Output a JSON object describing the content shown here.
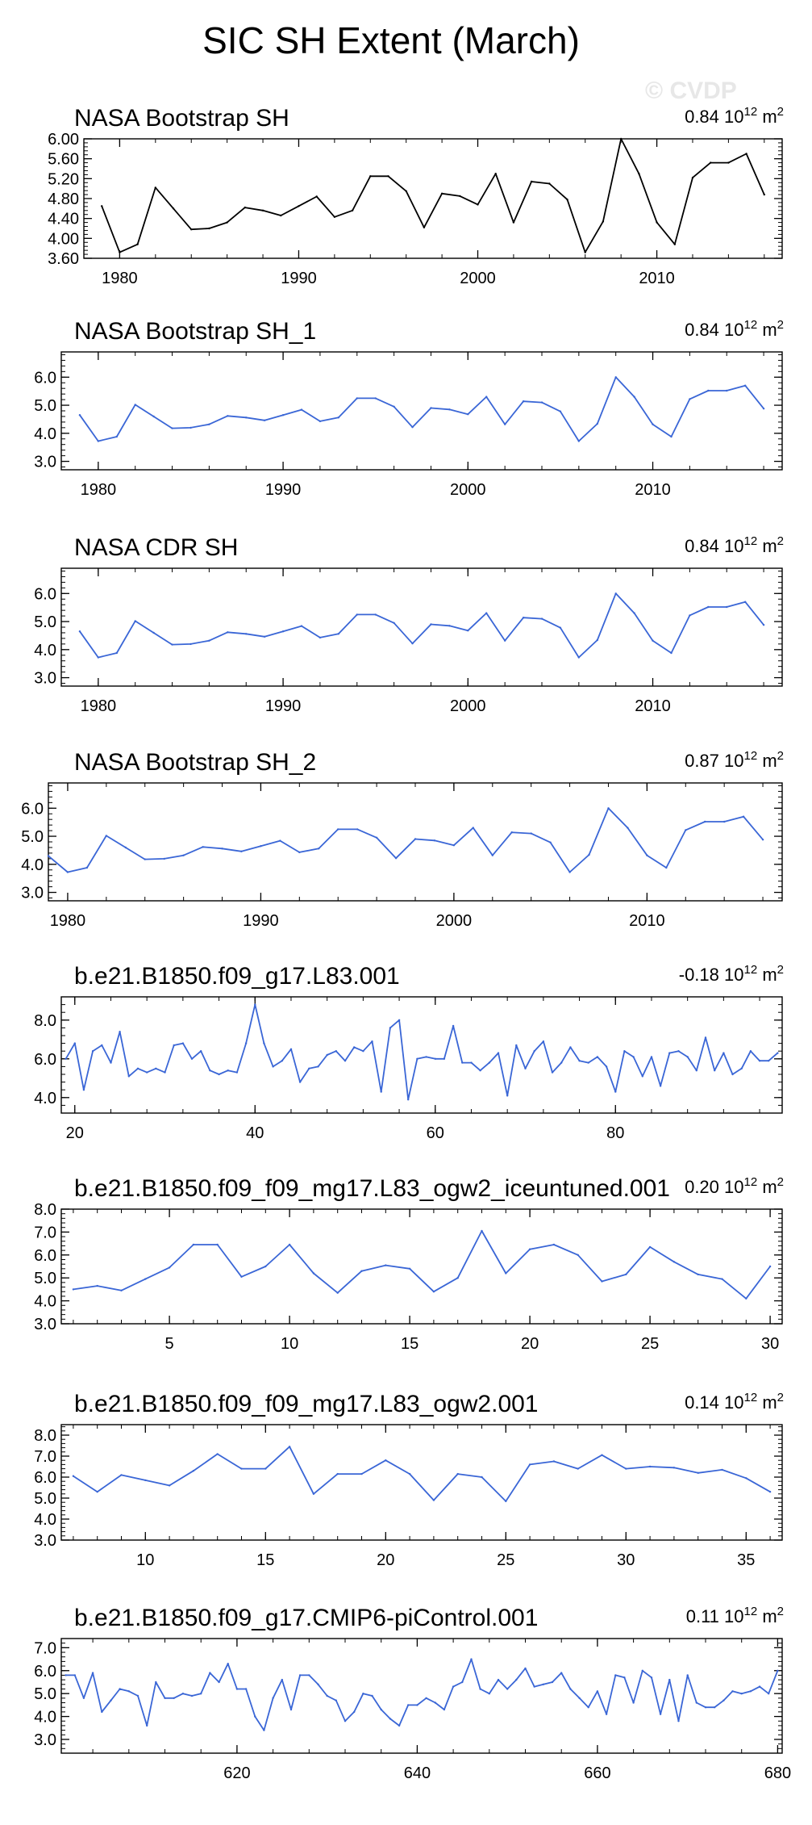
{
  "page_title": "SIC SH Extent (March)",
  "watermark": "© CVDP",
  "colors": {
    "obs": "#000000",
    "model": "#3a66d6"
  },
  "chart_data": [
    {
      "type": "line",
      "title": "NASA Bootstrap SH",
      "stat_value": "0.84",
      "stat_unit_base": "10",
      "stat_unit_exp": "12",
      "stat_unit_tail": "m",
      "stat_unit_sup": "2",
      "color": "#000000",
      "x": [
        1979,
        1980,
        1981,
        1982,
        1983,
        1984,
        1985,
        1986,
        1987,
        1988,
        1989,
        1990,
        1991,
        1992,
        1993,
        1994,
        1995,
        1996,
        1997,
        1998,
        1999,
        2000,
        2001,
        2002,
        2003,
        2004,
        2005,
        2006,
        2007,
        2008,
        2009,
        2010,
        2011,
        2012,
        2013,
        2014,
        2015,
        2016
      ],
      "values": [
        4.65,
        3.72,
        3.88,
        5.02,
        4.6,
        4.18,
        4.2,
        4.32,
        4.62,
        4.56,
        4.46,
        4.65,
        4.84,
        4.43,
        4.56,
        5.25,
        5.25,
        4.95,
        4.22,
        4.9,
        4.85,
        4.68,
        5.3,
        4.32,
        5.14,
        5.1,
        4.78,
        3.72,
        4.34,
        6.0,
        5.3,
        4.32,
        3.88,
        5.22,
        5.52,
        5.52,
        5.7,
        4.88
      ],
      "xlim": [
        1978,
        2017
      ],
      "ylim": [
        3.6,
        6.0
      ],
      "yticks": [
        "3.60",
        "4.00",
        "4.40",
        "4.80",
        "5.20",
        "5.60",
        "6.00"
      ],
      "xticks": [
        "1980",
        "1990",
        "2000",
        "2010"
      ]
    },
    {
      "type": "line",
      "title": "NASA Bootstrap SH_1",
      "stat_value": "0.84",
      "stat_unit_base": "10",
      "stat_unit_exp": "12",
      "stat_unit_tail": "m",
      "stat_unit_sup": "2",
      "color": "#3a66d6",
      "x": [
        1979,
        1980,
        1981,
        1982,
        1983,
        1984,
        1985,
        1986,
        1987,
        1988,
        1989,
        1990,
        1991,
        1992,
        1993,
        1994,
        1995,
        1996,
        1997,
        1998,
        1999,
        2000,
        2001,
        2002,
        2003,
        2004,
        2005,
        2006,
        2007,
        2008,
        2009,
        2010,
        2011,
        2012,
        2013,
        2014,
        2015,
        2016
      ],
      "values": [
        4.65,
        3.72,
        3.88,
        5.02,
        4.6,
        4.18,
        4.2,
        4.32,
        4.62,
        4.56,
        4.46,
        4.65,
        4.84,
        4.43,
        4.56,
        5.25,
        5.25,
        4.95,
        4.22,
        4.9,
        4.85,
        4.68,
        5.3,
        4.32,
        5.14,
        5.1,
        4.78,
        3.72,
        4.34,
        6.0,
        5.3,
        4.32,
        3.88,
        5.22,
        5.52,
        5.52,
        5.7,
        4.88
      ],
      "xlim": [
        1978,
        2017
      ],
      "ylim": [
        2.7,
        6.9
      ],
      "yticks": [
        "3.0",
        "4.0",
        "5.0",
        "6.0"
      ],
      "xticks": [
        "1980",
        "1990",
        "2000",
        "2010"
      ]
    },
    {
      "type": "line",
      "title": "NASA CDR SH",
      "stat_value": "0.84",
      "stat_unit_base": "10",
      "stat_unit_exp": "12",
      "stat_unit_tail": "m",
      "stat_unit_sup": "2",
      "color": "#3a66d6",
      "x": [
        1979,
        1980,
        1981,
        1982,
        1983,
        1984,
        1985,
        1986,
        1987,
        1988,
        1989,
        1990,
        1991,
        1992,
        1993,
        1994,
        1995,
        1996,
        1997,
        1998,
        1999,
        2000,
        2001,
        2002,
        2003,
        2004,
        2005,
        2006,
        2007,
        2008,
        2009,
        2010,
        2011,
        2012,
        2013,
        2014,
        2015,
        2016
      ],
      "values": [
        4.65,
        3.72,
        3.88,
        5.02,
        4.6,
        4.18,
        4.2,
        4.32,
        4.62,
        4.56,
        4.46,
        4.65,
        4.84,
        4.43,
        4.56,
        5.25,
        5.25,
        4.95,
        4.22,
        4.9,
        4.85,
        4.68,
        5.3,
        4.32,
        5.14,
        5.1,
        4.78,
        3.72,
        4.34,
        6.0,
        5.3,
        4.32,
        3.88,
        5.22,
        5.52,
        5.52,
        5.7,
        4.88
      ],
      "xlim": [
        1978,
        2017
      ],
      "ylim": [
        2.7,
        6.9
      ],
      "yticks": [
        "3.0",
        "4.0",
        "5.0",
        "6.0"
      ],
      "xticks": [
        "1980",
        "1990",
        "2000",
        "2010"
      ]
    },
    {
      "type": "line",
      "title": "NASA Bootstrap SH_2",
      "stat_value": "0.87",
      "stat_unit_base": "10",
      "stat_unit_exp": "12",
      "stat_unit_tail": "m",
      "stat_unit_sup": "2",
      "color": "#3a66d6",
      "x": [
        1979,
        1980,
        1981,
        1982,
        1983,
        1984,
        1985,
        1986,
        1987,
        1988,
        1989,
        1990,
        1991,
        1992,
        1993,
        1994,
        1995,
        1996,
        1997,
        1998,
        1999,
        2000,
        2001,
        2002,
        2003,
        2004,
        2005,
        2006,
        2007,
        2008,
        2009,
        2010,
        2011,
        2012,
        2013,
        2014,
        2015,
        2016
      ],
      "values": [
        4.3,
        3.72,
        3.88,
        5.02,
        4.6,
        4.18,
        4.2,
        4.32,
        4.62,
        4.56,
        4.46,
        4.65,
        4.84,
        4.43,
        4.56,
        5.25,
        5.25,
        4.95,
        4.22,
        4.9,
        4.85,
        4.68,
        5.3,
        4.32,
        5.14,
        5.1,
        4.78,
        3.72,
        4.34,
        6.0,
        5.3,
        4.32,
        3.88,
        5.22,
        5.52,
        5.52,
        5.7,
        4.88
      ],
      "xlim": [
        1979,
        2017
      ],
      "ylim": [
        2.7,
        6.9
      ],
      "yticks": [
        "3.0",
        "4.0",
        "5.0",
        "6.0"
      ],
      "xticks": [
        "1980",
        "1990",
        "2000",
        "2010"
      ]
    },
    {
      "type": "line",
      "title": "b.e21.B1850.f09_g17.L83.001",
      "stat_value": "-0.18",
      "stat_unit_base": "10",
      "stat_unit_exp": "12",
      "stat_unit_tail": "m",
      "stat_unit_sup": "2",
      "color": "#3a66d6",
      "x": [
        19,
        20,
        21,
        22,
        23,
        24,
        25,
        26,
        27,
        28,
        29,
        30,
        31,
        32,
        33,
        34,
        35,
        36,
        37,
        38,
        39,
        40,
        41,
        42,
        43,
        44,
        45,
        46,
        47,
        48,
        49,
        50,
        51,
        52,
        53,
        54,
        55,
        56,
        57,
        58,
        59,
        60,
        61,
        62,
        63,
        64,
        65,
        66,
        67,
        68,
        69,
        70,
        71,
        72,
        73,
        74,
        75,
        76,
        77,
        78,
        79,
        80,
        81,
        82,
        83,
        84,
        85,
        86,
        87,
        88,
        89,
        90,
        91,
        92,
        93,
        94,
        95,
        96,
        97,
        98
      ],
      "values": [
        6.0,
        6.8,
        4.4,
        6.4,
        6.7,
        5.8,
        7.4,
        5.1,
        5.5,
        5.3,
        5.5,
        5.3,
        6.7,
        6.8,
        6.0,
        6.4,
        5.4,
        5.2,
        5.4,
        5.3,
        6.8,
        8.8,
        6.8,
        5.6,
        5.9,
        6.5,
        4.8,
        5.5,
        5.6,
        6.2,
        6.4,
        5.9,
        6.6,
        6.4,
        6.9,
        4.3,
        7.6,
        8.0,
        3.9,
        6.0,
        6.1,
        6.0,
        6.0,
        7.7,
        5.8,
        5.8,
        5.4,
        5.8,
        6.3,
        4.1,
        6.7,
        5.5,
        6.4,
        6.9,
        5.3,
        5.8,
        6.6,
        5.9,
        5.8,
        6.1,
        5.6,
        4.3,
        6.4,
        6.1,
        5.1,
        6.1,
        4.6,
        6.3,
        6.4,
        6.1,
        5.4,
        7.1,
        5.4,
        6.3,
        5.2,
        5.5,
        6.4,
        5.9,
        5.9,
        6.3
      ],
      "xlim": [
        18.5,
        98.5
      ],
      "ylim": [
        3.2,
        9.2
      ],
      "yticks": [
        "4.0",
        "6.0",
        "8.0"
      ],
      "xticks": [
        "20",
        "40",
        "60",
        "80"
      ]
    },
    {
      "type": "line",
      "title": "b.e21.B1850.f09_f09_mg17.L83_ogw2_iceuntuned.001",
      "stat_value": "0.20",
      "stat_unit_base": "10",
      "stat_unit_exp": "12",
      "stat_unit_tail": "m",
      "stat_unit_sup": "2",
      "color": "#3a66d6",
      "x": [
        1,
        2,
        3,
        4,
        5,
        6,
        7,
        8,
        9,
        10,
        11,
        12,
        13,
        14,
        15,
        16,
        17,
        18,
        19,
        20,
        21,
        22,
        23,
        24,
        25,
        26,
        27,
        28,
        29,
        30
      ],
      "values": [
        4.5,
        4.65,
        4.45,
        4.95,
        5.45,
        6.45,
        6.45,
        5.05,
        5.5,
        6.45,
        5.2,
        4.35,
        5.3,
        5.55,
        5.4,
        4.4,
        5.0,
        7.05,
        5.2,
        6.25,
        6.45,
        6.0,
        4.85,
        5.15,
        6.35,
        5.7,
        5.15,
        4.95,
        4.1,
        5.5
      ],
      "xlim": [
        0.5,
        30.5
      ],
      "ylim": [
        3.0,
        8.0
      ],
      "yticks": [
        "3.0",
        "4.0",
        "5.0",
        "6.0",
        "7.0",
        "8.0"
      ],
      "xticks": [
        "5",
        "10",
        "15",
        "20",
        "25",
        "30"
      ]
    },
    {
      "type": "line",
      "title": "b.e21.B1850.f09_f09_mg17.L83_ogw2.001",
      "stat_value": "0.14",
      "stat_unit_base": "10",
      "stat_unit_exp": "12",
      "stat_unit_tail": "m",
      "stat_unit_sup": "2",
      "color": "#3a66d6",
      "x": [
        7,
        8,
        9,
        10,
        11,
        12,
        13,
        14,
        15,
        16,
        17,
        18,
        19,
        20,
        21,
        22,
        23,
        24,
        25,
        26,
        27,
        28,
        29,
        30,
        31,
        32,
        33,
        34,
        35,
        36
      ],
      "values": [
        6.05,
        5.3,
        6.1,
        5.85,
        5.6,
        6.3,
        7.1,
        6.4,
        6.4,
        7.45,
        5.2,
        6.15,
        6.15,
        6.8,
        6.15,
        4.9,
        6.15,
        6.0,
        4.85,
        6.6,
        6.75,
        6.4,
        7.05,
        6.4,
        6.5,
        6.45,
        6.2,
        6.35,
        5.95,
        5.3
      ],
      "xlim": [
        6.5,
        36.5
      ],
      "ylim": [
        3.0,
        8.5
      ],
      "yticks": [
        "3.0",
        "4.0",
        "5.0",
        "6.0",
        "7.0",
        "8.0"
      ],
      "xticks": [
        "10",
        "15",
        "20",
        "25",
        "30",
        "35"
      ]
    },
    {
      "type": "line",
      "title": "b.e21.B1850.f09_g17.CMIP6-piControl.001",
      "stat_value": "0.11",
      "stat_unit_base": "10",
      "stat_unit_exp": "12",
      "stat_unit_tail": "m",
      "stat_unit_sup": "2",
      "color": "#3a66d6",
      "x": [
        601,
        602,
        603,
        604,
        605,
        606,
        607,
        608,
        609,
        610,
        611,
        612,
        613,
        614,
        615,
        616,
        617,
        618,
        619,
        620,
        621,
        622,
        623,
        624,
        625,
        626,
        627,
        628,
        629,
        630,
        631,
        632,
        633,
        634,
        635,
        636,
        637,
        638,
        639,
        640,
        641,
        642,
        643,
        644,
        645,
        646,
        647,
        648,
        649,
        650,
        651,
        652,
        653,
        654,
        655,
        656,
        657,
        658,
        659,
        660,
        661,
        662,
        663,
        664,
        665,
        666,
        667,
        668,
        669,
        670,
        671,
        672,
        673,
        674,
        675,
        676,
        677,
        678,
        679,
        680
      ],
      "values": [
        5.8,
        5.8,
        4.8,
        5.9,
        4.2,
        4.7,
        5.2,
        5.1,
        4.9,
        3.6,
        5.5,
        4.8,
        4.8,
        5.0,
        4.9,
        5.0,
        5.9,
        5.5,
        6.3,
        5.2,
        5.2,
        4.0,
        3.4,
        4.8,
        5.6,
        4.3,
        5.8,
        5.8,
        5.4,
        4.9,
        4.7,
        3.8,
        4.2,
        5.0,
        4.9,
        4.3,
        3.9,
        3.6,
        4.5,
        4.5,
        4.8,
        4.6,
        4.3,
        5.3,
        5.5,
        6.5,
        5.2,
        5.0,
        5.6,
        5.2,
        5.6,
        6.1,
        5.3,
        5.4,
        5.5,
        5.9,
        5.2,
        4.8,
        4.4,
        5.1,
        4.1,
        5.8,
        5.7,
        4.6,
        6.0,
        5.7,
        4.1,
        5.6,
        3.8,
        5.8,
        4.6,
        4.4,
        4.4,
        4.7,
        5.1,
        5.0,
        5.1,
        5.3,
        5.0,
        6.0
      ],
      "xlim": [
        600.5,
        680.5
      ],
      "ylim": [
        2.4,
        7.4
      ],
      "yticks": [
        "3.0",
        "4.0",
        "5.0",
        "6.0",
        "7.0"
      ],
      "xticks": [
        "620",
        "640",
        "660",
        "680"
      ]
    }
  ]
}
